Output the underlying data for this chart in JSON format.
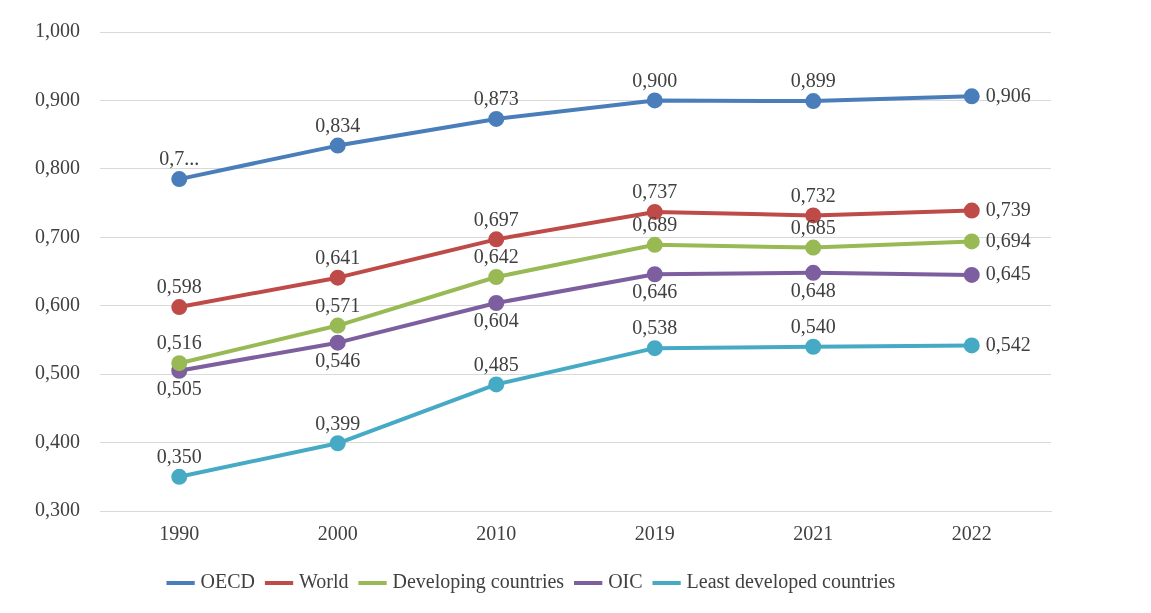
{
  "chart_data": {
    "type": "line",
    "categories": [
      "1990",
      "2000",
      "2010",
      "2019",
      "2021",
      "2022"
    ],
    "ylim": [
      0.3,
      1.0
    ],
    "yticks": [
      {
        "value": 0.3,
        "label": "0,300"
      },
      {
        "value": 0.4,
        "label": "0,400"
      },
      {
        "value": 0.5,
        "label": "0,500"
      },
      {
        "value": 0.6,
        "label": "0,600"
      },
      {
        "value": 0.7,
        "label": "0,700"
      },
      {
        "value": 0.8,
        "label": "0,800"
      },
      {
        "value": 0.9,
        "label": "0,900"
      },
      {
        "value": 1.0,
        "label": "1,000"
      }
    ],
    "grid": "y",
    "legend": "bottom",
    "marker": "circle",
    "line_style": "solid",
    "series": [
      {
        "name": "OECD",
        "color": "#4a7ebb",
        "values": [
          0.785,
          0.834,
          0.873,
          0.9,
          0.899,
          0.906
        ],
        "value_labels": [
          "0,7...",
          "0,834",
          "0,873",
          "0,900",
          "0,899",
          "0,906"
        ]
      },
      {
        "name": "World",
        "color": "#be4b48",
        "values": [
          0.598,
          0.641,
          0.697,
          0.737,
          0.732,
          0.739
        ],
        "value_labels": [
          "0,598",
          "0,641",
          "0,697",
          "0,737",
          "0,732",
          "0,739"
        ]
      },
      {
        "name": "Developing countries",
        "color": "#98b954",
        "values": [
          0.516,
          0.571,
          0.642,
          0.689,
          0.685,
          0.694
        ],
        "value_labels": [
          "0,516",
          "0,571",
          "0,642",
          "0,689",
          "0,685",
          "0,694"
        ]
      },
      {
        "name": "OIC",
        "color": "#7d5fa0",
        "values": [
          0.505,
          0.546,
          0.604,
          0.646,
          0.648,
          0.645
        ],
        "value_labels": [
          "0,505",
          "0,546",
          "0,604",
          "0,646",
          "0,648",
          "0,645"
        ]
      },
      {
        "name": "Least developed countries",
        "color": "#46aac5",
        "values": [
          0.35,
          0.399,
          0.485,
          0.538,
          0.54,
          0.542
        ],
        "value_labels": [
          "0,350",
          "0,399",
          "0,485",
          "0,538",
          "0,540",
          "0,542"
        ]
      }
    ]
  }
}
